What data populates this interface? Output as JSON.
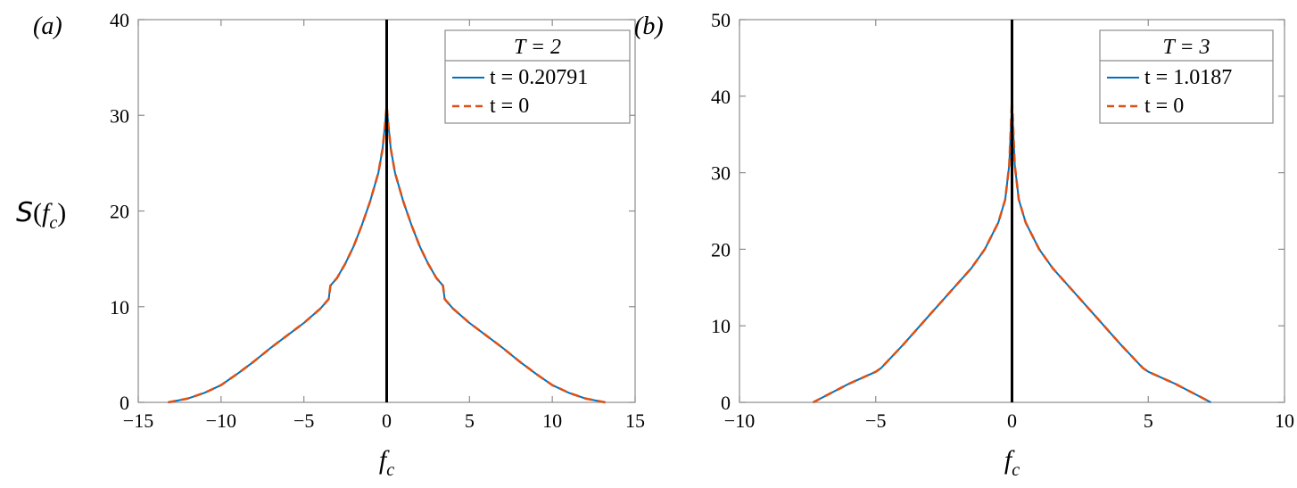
{
  "colors": {
    "series_solid": "#0072BD",
    "series_dashed": "#D95319",
    "zero_line": "#000000",
    "axes": "#8c8c8c"
  },
  "chart_data": [
    {
      "type": "line",
      "panel_label": "(a)",
      "ylabel": "S(f_c)",
      "xlabel": "f_c",
      "xlim": [
        -15,
        15
      ],
      "ylim": [
        0,
        40
      ],
      "xticks": [
        -15,
        -10,
        -5,
        0,
        5,
        10,
        15
      ],
      "yticks": [
        0,
        10,
        20,
        30,
        40
      ],
      "xtick_labels": [
        "−15",
        "−10",
        "−5",
        "0",
        "5",
        "10",
        "15"
      ],
      "ytick_labels": [
        "0",
        "10",
        "20",
        "30",
        "40"
      ],
      "legend": {
        "title": "T = 2",
        "placement": "top-right",
        "entries": [
          "t = 0.20791",
          "t = 0"
        ]
      },
      "series": [
        {
          "name": "t = 0.20791",
          "style": "solid",
          "x": [
            -13.2,
            -12,
            -11,
            -10,
            -9,
            -8,
            -7,
            -6,
            -5,
            -4,
            -3.5,
            -3.4,
            -3,
            -2.5,
            -2,
            -1.5,
            -1,
            -0.5,
            -0.25,
            -0.1,
            0,
            0.1,
            0.25,
            0.5,
            1,
            1.5,
            2,
            2.5,
            3,
            3.4,
            3.5,
            4,
            5,
            6,
            7,
            8,
            9,
            10,
            11,
            12,
            13.2
          ],
          "y": [
            0,
            0.4,
            1.0,
            1.8,
            3.0,
            4.3,
            5.7,
            7.0,
            8.3,
            9.8,
            10.8,
            12.2,
            13.0,
            14.5,
            16.3,
            18.5,
            21.0,
            24.0,
            26.5,
            29.0,
            31.0,
            29.0,
            26.5,
            24.0,
            21.0,
            18.5,
            16.3,
            14.5,
            13.0,
            12.2,
            10.8,
            9.8,
            8.3,
            7.0,
            5.7,
            4.3,
            3.0,
            1.8,
            1.0,
            0.4,
            0
          ]
        },
        {
          "name": "t = 0",
          "style": "dashed",
          "x": [
            -13.2,
            -12,
            -11,
            -10,
            -9,
            -8,
            -7,
            -6,
            -5,
            -4,
            -3.5,
            -3.4,
            -3,
            -2.5,
            -2,
            -1.5,
            -1,
            -0.5,
            -0.25,
            -0.1,
            0,
            0.1,
            0.25,
            0.5,
            1,
            1.5,
            2,
            2.5,
            3,
            3.4,
            3.5,
            4,
            5,
            6,
            7,
            8,
            9,
            10,
            11,
            12,
            13.2
          ],
          "y": [
            0,
            0.4,
            1.0,
            1.8,
            3.0,
            4.3,
            5.7,
            7.0,
            8.3,
            9.8,
            10.8,
            12.2,
            13.0,
            14.5,
            16.3,
            18.5,
            21.0,
            24.0,
            26.5,
            29.0,
            31.0,
            29.0,
            26.5,
            24.0,
            21.0,
            18.5,
            16.3,
            14.5,
            13.0,
            12.2,
            10.8,
            9.8,
            8.3,
            7.0,
            5.7,
            4.3,
            3.0,
            1.8,
            1.0,
            0.4,
            0
          ]
        }
      ]
    },
    {
      "type": "line",
      "panel_label": "(b)",
      "ylabel": "",
      "xlabel": "f_c",
      "xlim": [
        -10,
        10
      ],
      "ylim": [
        0,
        50
      ],
      "xticks": [
        -10,
        -5,
        0,
        5,
        10
      ],
      "yticks": [
        0,
        10,
        20,
        30,
        40,
        50
      ],
      "xtick_labels": [
        "−10",
        "−5",
        "0",
        "5",
        "10"
      ],
      "ytick_labels": [
        "0",
        "10",
        "20",
        "30",
        "40",
        "50"
      ],
      "legend": {
        "title": "T = 3",
        "placement": "top-right",
        "entries": [
          "t = 1.0187",
          "t = 0"
        ]
      },
      "series": [
        {
          "name": "t = 1.0187",
          "style": "solid",
          "x": [
            -7.3,
            -6,
            -5,
            -4.8,
            -4,
            -3,
            -2,
            -1.5,
            -1,
            -0.5,
            -0.25,
            -0.1,
            0,
            0.1,
            0.25,
            0.5,
            1,
            1.5,
            2,
            3,
            4,
            4.8,
            5,
            6,
            7.3
          ],
          "y": [
            0,
            2.4,
            4.0,
            4.5,
            7.5,
            11.5,
            15.5,
            17.5,
            20.0,
            23.5,
            26.5,
            31.0,
            39.0,
            31.0,
            26.5,
            23.5,
            20.0,
            17.5,
            15.5,
            11.5,
            7.5,
            4.5,
            4.0,
            2.4,
            0
          ]
        },
        {
          "name": "t = 0",
          "style": "dashed",
          "x": [
            -7.3,
            -6,
            -5,
            -4.8,
            -4,
            -3,
            -2,
            -1.5,
            -1,
            -0.5,
            -0.25,
            -0.1,
            0,
            0.1,
            0.25,
            0.5,
            1,
            1.5,
            2,
            3,
            4,
            4.8,
            5,
            6,
            7.3
          ],
          "y": [
            0,
            2.4,
            4.0,
            4.5,
            7.5,
            11.5,
            15.5,
            17.5,
            20.0,
            23.5,
            26.5,
            31.0,
            39.5,
            31.0,
            26.5,
            23.5,
            20.0,
            17.5,
            15.5,
            11.5,
            7.5,
            4.5,
            4.0,
            2.4,
            0
          ]
        }
      ]
    }
  ]
}
